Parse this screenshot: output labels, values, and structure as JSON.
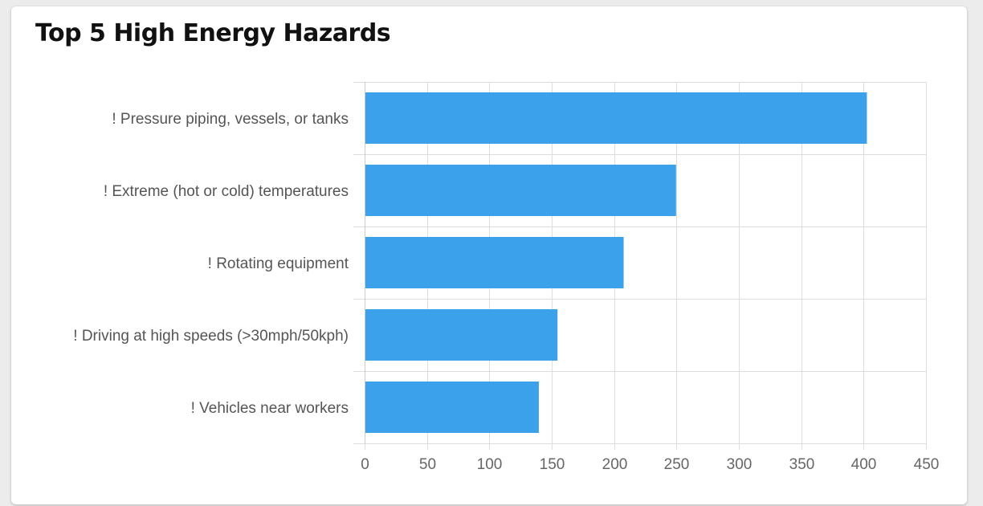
{
  "title": "Top 5 High Energy Hazards",
  "colors": {
    "bar": "#3aa1ea",
    "grid": "#dddddd",
    "axis_text": "#666666",
    "label_text": "#555555"
  },
  "chart_data": {
    "type": "bar",
    "orientation": "horizontal",
    "title": "Top 5 High Energy Hazards",
    "categories": [
      "! Pressure piping, vessels, or tanks",
      "! Extreme (hot or cold) temperatures",
      "! Rotating equipment",
      "! Driving at high speeds (>30mph/50kph)",
      "! Vehicles near workers"
    ],
    "values": [
      402,
      249,
      207,
      154,
      139
    ],
    "xlim": [
      0,
      450
    ],
    "xticks": [
      "0",
      "50",
      "100",
      "150",
      "200",
      "250",
      "300",
      "350",
      "400",
      "450"
    ],
    "grid": true,
    "legend": "none"
  }
}
